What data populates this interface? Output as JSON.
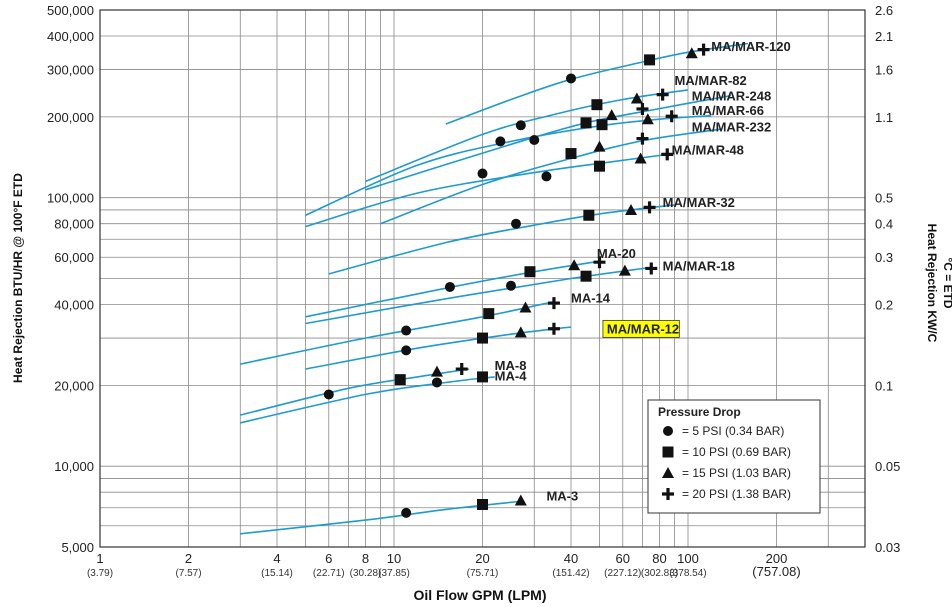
{
  "chart_data": {
    "type": "line",
    "xlabel": "Oil Flow GPM (LPM)",
    "ylabel": "Heat Rejection BTU/HR @ 100°F ETD",
    "y2label_line1": "Heat Rejection KW/C",
    "y2label_line2": "°C = ETD",
    "x_scale": "log",
    "y_scale": "log",
    "xlim": [
      1,
      400
    ],
    "ylim": [
      5000,
      500000
    ],
    "x_ticks": [
      {
        "v": 1,
        "label": "1",
        "sub": "(3.79)"
      },
      {
        "v": 2,
        "label": "2",
        "sub": "(7.57)"
      },
      {
        "v": 4,
        "label": "4",
        "sub": "(15.14)"
      },
      {
        "v": 6,
        "label": "6",
        "sub": "(22.71)"
      },
      {
        "v": 8,
        "label": "8",
        "sub": "(30.28)"
      },
      {
        "v": 10,
        "label": "10",
        "sub": "(37.85)"
      },
      {
        "v": 20,
        "label": "20",
        "sub": "(75.71)"
      },
      {
        "v": 40,
        "label": "40",
        "sub": "(151.42)"
      },
      {
        "v": 60,
        "label": "60",
        "sub": "(227.12)"
      },
      {
        "v": 80,
        "label": "80",
        "sub": "(302.83)"
      },
      {
        "v": 100,
        "label": "100",
        "sub": "(378.54)"
      },
      {
        "v": 200,
        "label": "200",
        "sub": "(757.08)"
      }
    ],
    "y_ticks": [
      {
        "v": 5000,
        "label": "5,000"
      },
      {
        "v": 10000,
        "label": "10,000"
      },
      {
        "v": 20000,
        "label": "20,000"
      },
      {
        "v": 40000,
        "label": "40,000"
      },
      {
        "v": 60000,
        "label": "60,000"
      },
      {
        "v": 80000,
        "label": "80,000"
      },
      {
        "v": 100000,
        "label": "100,000"
      },
      {
        "v": 200000,
        "label": "200,000"
      },
      {
        "v": 300000,
        "label": "300,000"
      },
      {
        "v": 400000,
        "label": "400,000"
      },
      {
        "v": 500000,
        "label": "500,000"
      }
    ],
    "y2_ticks": [
      {
        "v": 5000,
        "label": "0.03"
      },
      {
        "v": 10000,
        "label": "0.05"
      },
      {
        "v": 20000,
        "label": "0.1"
      },
      {
        "v": 40000,
        "label": "0.2"
      },
      {
        "v": 60000,
        "label": "0.3"
      },
      {
        "v": 80000,
        "label": "0.4"
      },
      {
        "v": 100000,
        "label": "0.5"
      },
      {
        "v": 200000,
        "label": "1.1"
      },
      {
        "v": 300000,
        "label": "1.6"
      },
      {
        "v": 400000,
        "label": "2.1"
      },
      {
        "v": 500000,
        "label": "2.6"
      }
    ],
    "grid": true,
    "legend": {
      "title": "Pressure Drop",
      "placement": "bottom-right",
      "entries": [
        {
          "marker": "circle",
          "label": "=   5 PSI (0.34 BAR)"
        },
        {
          "marker": "square",
          "label": "= 10 PSI (0.69 BAR)"
        },
        {
          "marker": "triangle",
          "label": "= 15 PSI (1.03 BAR)"
        },
        {
          "marker": "plus",
          "label": "= 20 PSI (1.38 BAR)"
        }
      ]
    },
    "line_color": "#1e9bd0",
    "highlight_color": "#ffff00",
    "series": [
      {
        "name": "MA/MAR-120",
        "label_at": [
          120,
          355000
        ],
        "curve": [
          [
            15,
            188000
          ],
          [
            25,
            232000
          ],
          [
            40,
            276000
          ],
          [
            70,
            320000
          ],
          [
            100,
            348000
          ],
          [
            160,
            375000
          ]
        ],
        "points": [
          {
            "m": "circle",
            "x": 40,
            "y": 278000
          },
          {
            "m": "square",
            "x": 74,
            "y": 326000
          },
          {
            "m": "triangle",
            "x": 103,
            "y": 345000
          },
          {
            "m": "plus",
            "x": 113,
            "y": 356000
          }
        ]
      },
      {
        "name": "MA/MAR-82",
        "label_at": [
          90,
          265000
        ],
        "curve": [
          [
            8,
            115000
          ],
          [
            20,
            172000
          ],
          [
            35,
            204000
          ],
          [
            60,
            232000
          ],
          [
            100,
            252000
          ]
        ],
        "points": [
          {
            "m": "circle",
            "x": 27,
            "y": 186000
          },
          {
            "m": "square",
            "x": 49,
            "y": 222000
          },
          {
            "m": "triangle",
            "x": 67,
            "y": 234000
          },
          {
            "m": "plus",
            "x": 82,
            "y": 242000
          }
        ]
      },
      {
        "name": "MA/MAR-248",
        "label_at": [
          103,
          232000
        ],
        "curve": [
          [
            8,
            107000
          ],
          [
            25,
            158000
          ],
          [
            45,
            190000
          ],
          [
            75,
            212000
          ],
          [
            140,
            240000
          ]
        ],
        "points": [
          {
            "m": "circle",
            "x": 30,
            "y": 164000
          },
          {
            "m": "square",
            "x": 45,
            "y": 190000
          },
          {
            "m": "triangle",
            "x": 55,
            "y": 203000
          },
          {
            "m": "plus",
            "x": 70,
            "y": 214000
          }
        ]
      },
      {
        "name": "MA/MAR-66",
        "label_at": [
          103,
          205000
        ],
        "curve": [
          [
            5,
            86000
          ],
          [
            12,
            132000
          ],
          [
            25,
            162000
          ],
          [
            50,
            185000
          ],
          [
            80,
            196000
          ],
          [
            120,
            202000
          ]
        ],
        "points": [
          {
            "m": "circle",
            "x": 23,
            "y": 162000
          },
          {
            "m": "square",
            "x": 51,
            "y": 187000
          },
          {
            "m": "triangle",
            "x": 73,
            "y": 196000
          },
          {
            "m": "plus",
            "x": 88,
            "y": 201000
          }
        ]
      },
      {
        "name": "MA/MAR-232",
        "label_at": [
          103,
          178000
        ],
        "curve": [
          [
            9,
            80000
          ],
          [
            20,
            112000
          ],
          [
            40,
            140000
          ],
          [
            70,
            163000
          ],
          [
            130,
            180000
          ]
        ],
        "points": [
          {
            "m": "circle",
            "x": 20,
            "y": 123000
          },
          {
            "m": "square",
            "x": 40,
            "y": 146000
          },
          {
            "m": "triangle",
            "x": 50,
            "y": 155000
          },
          {
            "m": "plus",
            "x": 70,
            "y": 166000
          }
        ]
      },
      {
        "name": "MA/MAR-48",
        "label_at": [
          88,
          146000
        ],
        "curve": [
          [
            5,
            78000
          ],
          [
            12,
            104000
          ],
          [
            30,
            124000
          ],
          [
            55,
            136000
          ],
          [
            90,
            146000
          ]
        ],
        "points": [
          {
            "m": "circle",
            "x": 33,
            "y": 120000
          },
          {
            "m": "square",
            "x": 50,
            "y": 131000
          },
          {
            "m": "triangle",
            "x": 69,
            "y": 140000
          },
          {
            "m": "plus",
            "x": 85,
            "y": 145000
          }
        ]
      },
      {
        "name": "MA/MAR-32",
        "label_at": [
          82,
          93000
        ],
        "curve": [
          [
            6,
            52000
          ],
          [
            15,
            68000
          ],
          [
            30,
            79000
          ],
          [
            50,
            87000
          ],
          [
            90,
            94000
          ]
        ],
        "points": [
          {
            "m": "circle",
            "x": 26,
            "y": 80000
          },
          {
            "m": "square",
            "x": 46,
            "y": 86000
          },
          {
            "m": "triangle",
            "x": 64,
            "y": 90000
          },
          {
            "m": "plus",
            "x": 74,
            "y": 92000
          }
        ]
      },
      {
        "name": "MA-20",
        "label_at": [
          49,
          60000
        ],
        "curve": [
          [
            5,
            36000
          ],
          [
            15,
            46000
          ],
          [
            30,
            53000
          ],
          [
            50,
            58000
          ]
        ],
        "points": [
          {
            "m": "circle",
            "x": 15.5,
            "y": 46500
          },
          {
            "m": "square",
            "x": 29,
            "y": 53000
          },
          {
            "m": "triangle",
            "x": 41,
            "y": 56000
          },
          {
            "m": "plus",
            "x": 50,
            "y": 57500
          }
        ]
      },
      {
        "name": "MA/MAR-18",
        "label_at": [
          82,
          54000
        ],
        "curve": [
          [
            5,
            34000
          ],
          [
            15,
            42000
          ],
          [
            40,
            50000
          ],
          [
            75,
            55000
          ]
        ],
        "points": [
          {
            "m": "circle",
            "x": 25,
            "y": 47000
          },
          {
            "m": "square",
            "x": 45,
            "y": 51000
          },
          {
            "m": "triangle",
            "x": 61,
            "y": 53500
          },
          {
            "m": "plus",
            "x": 75,
            "y": 54500
          }
        ]
      },
      {
        "name": "MA-14",
        "label_at": [
          40,
          41000
        ],
        "curve": [
          [
            3,
            24000
          ],
          [
            8,
            30000
          ],
          [
            20,
            36000
          ],
          [
            35,
            41000
          ]
        ],
        "points": [
          {
            "m": "circle",
            "x": 11,
            "y": 32000
          },
          {
            "m": "square",
            "x": 21,
            "y": 37000
          },
          {
            "m": "triangle",
            "x": 28,
            "y": 39000
          },
          {
            "m": "plus",
            "x": 35,
            "y": 40500
          }
        ]
      },
      {
        "name": "MA/MAR-12",
        "label_at": [
          53,
          31500
        ],
        "highlight": true,
        "curve": [
          [
            5,
            23000
          ],
          [
            12,
            27500
          ],
          [
            25,
            31000
          ],
          [
            40,
            33000
          ]
        ],
        "points": [
          {
            "m": "circle",
            "x": 11,
            "y": 27000
          },
          {
            "m": "square",
            "x": 20,
            "y": 30000
          },
          {
            "m": "triangle",
            "x": 27,
            "y": 31500
          },
          {
            "m": "plus",
            "x": 35,
            "y": 32500
          }
        ]
      },
      {
        "name": "MA-8",
        "label_at": [
          22,
          23000
        ],
        "curve": [
          [
            3,
            15500
          ],
          [
            7,
            19500
          ],
          [
            12,
            21500
          ],
          [
            18,
            23000
          ]
        ],
        "points": [
          {
            "m": "circle",
            "x": 6,
            "y": 18500
          },
          {
            "m": "square",
            "x": 10.5,
            "y": 21000
          },
          {
            "m": "triangle",
            "x": 14,
            "y": 22500
          },
          {
            "m": "plus",
            "x": 17,
            "y": 23000
          }
        ]
      },
      {
        "name": "MA-4",
        "label_at": [
          22,
          21000
        ],
        "curve": [
          [
            3,
            14500
          ],
          [
            8,
            18500
          ],
          [
            15,
            20500
          ],
          [
            22,
            21500
          ]
        ],
        "points": [
          {
            "m": "circle",
            "x": 14,
            "y": 20500
          },
          {
            "m": "square",
            "x": 20,
            "y": 21500
          }
        ]
      },
      {
        "name": "MA-3",
        "label_at": [
          33,
          7500
        ],
        "curve": [
          [
            3,
            5600
          ],
          [
            8,
            6300
          ],
          [
            15,
            6900
          ],
          [
            27,
            7400
          ]
        ],
        "points": [
          {
            "m": "circle",
            "x": 11,
            "y": 6700
          },
          {
            "m": "square",
            "x": 20,
            "y": 7200
          },
          {
            "m": "triangle",
            "x": 27,
            "y": 7450
          }
        ]
      }
    ]
  }
}
